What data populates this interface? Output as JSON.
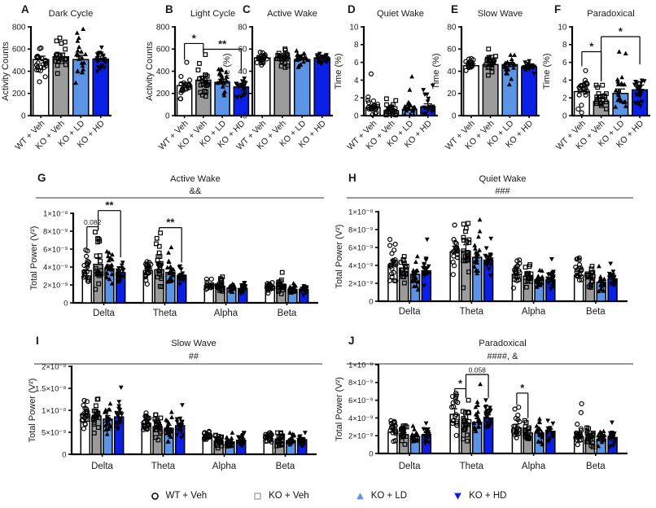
{
  "colors": {
    "bar_fills": [
      "#FFFFFF",
      "#9B9B9B",
      "#5B94E6",
      "#0A20E6"
    ],
    "bar_stroke": "#000000",
    "marker": "#000000",
    "legend_square_stroke": "#ACACAC",
    "axis": "#000000"
  },
  "legend": [
    {
      "label": "WT + Veh",
      "marker": "circle-open",
      "color": "#000000"
    },
    {
      "label": "KO + Veh",
      "marker": "square-open",
      "color": "#ACACAC"
    },
    {
      "label": "KO + LD",
      "marker": "triangle-up",
      "color": "#5B94E6"
    },
    {
      "label": "KO + HD",
      "marker": "triangle-down",
      "color": "#0A20E6"
    }
  ],
  "chart_data": [
    {
      "id": "A",
      "type": "bar-scatter",
      "layout": "top",
      "title": "Dark Cycle",
      "ylabel": "Activity Counts",
      "ylim": [
        0,
        800
      ],
      "yticks": [
        0,
        200,
        400,
        600,
        800
      ],
      "ytick_labels": [
        "0",
        "200",
        "400",
        "600",
        "800"
      ],
      "categories": [
        "WT + Veh",
        "KO + Veh",
        "KO + LD",
        "KO + HD"
      ],
      "means": [
        505,
        530,
        505,
        510
      ],
      "sds": [
        62,
        68,
        78,
        52
      ],
      "extra_points": [
        [
          305,
          350
        ],
        [
          700,
          380
        ],
        [
          700,
          745,
          780,
          295
        ],
        [
          615
        ]
      ],
      "sig": []
    },
    {
      "id": "B",
      "type": "bar-scatter",
      "layout": "top",
      "title": "Light Cycle",
      "ylabel": "Activity Counts",
      "ylim": [
        0,
        800
      ],
      "yticks": [
        0,
        200,
        400,
        600,
        800
      ],
      "ytick_labels": [
        "0",
        "200",
        "400",
        "600",
        "800"
      ],
      "categories": [
        "WT + Veh",
        "KO + Veh",
        "KO + LD",
        "KO + HD"
      ],
      "means": [
        270,
        320,
        300,
        258
      ],
      "sds": [
        55,
        68,
        55,
        48
      ],
      "extra_points": [
        [
          480
        ],
        [
          550,
          470,
          185
        ],
        [
          390
        ],
        [
          168
        ]
      ],
      "sig": [
        {
          "from": 0,
          "to": 1,
          "label": "*",
          "y": 650
        },
        {
          "from": 1,
          "to": 3,
          "label": "**",
          "y": 598
        }
      ]
    },
    {
      "id": "C",
      "type": "bar-scatter",
      "layout": "top",
      "title": "Active Wake",
      "ylabel": "Time (%)",
      "ylim": [
        0,
        80
      ],
      "yticks": [
        0,
        20,
        40,
        60,
        80
      ],
      "ytick_labels": [
        "0",
        "20",
        "40",
        "60",
        "80"
      ],
      "categories": [
        "WT + Veh",
        "KO + Veh",
        "KO + LD",
        "KO + HD"
      ],
      "means": [
        52,
        52,
        50.5,
        52
      ],
      "sds": [
        3,
        4,
        4,
        2.5
      ],
      "extra_points": [
        [],
        [],
        [],
        []
      ],
      "sig": []
    },
    {
      "id": "D",
      "type": "bar-scatter",
      "layout": "top",
      "title": "Quiet Wake",
      "ylabel": "Time (%)",
      "ylim": [
        0,
        10
      ],
      "yticks": [
        0,
        2,
        4,
        6,
        8,
        10
      ],
      "ytick_labels": [
        "0",
        "2",
        "4",
        "6",
        "8",
        "10"
      ],
      "categories": [
        "WT + Veh",
        "KO + Veh",
        "KO + LD",
        "KO + HD"
      ],
      "means": [
        0.9,
        0.55,
        0.7,
        1.0
      ],
      "sds": [
        0.55,
        0.45,
        0.55,
        0.65
      ],
      "extra_points": [
        [
          4.7,
          2.1
        ],
        [
          1.9,
          1.7
        ],
        [
          4.4,
          2.9
        ],
        [
          3.4,
          2.9
        ]
      ],
      "sig": []
    },
    {
      "id": "E",
      "type": "bar-scatter",
      "layout": "top",
      "title": "Slow Wave",
      "ylabel": "Time (%)",
      "ylim": [
        0,
        80
      ],
      "yticks": [
        0,
        20,
        40,
        60,
        80
      ],
      "ytick_labels": [
        "0",
        "20",
        "40",
        "60",
        "80"
      ],
      "categories": [
        "WT + Veh",
        "KO + Veh",
        "KO + LD",
        "KO + HD"
      ],
      "means": [
        45,
        46,
        46,
        44
      ],
      "sds": [
        3.5,
        4.5,
        4,
        3
      ],
      "extra_points": [
        [],
        [
          60
        ],
        [
          28,
          33
        ],
        []
      ],
      "sig": []
    },
    {
      "id": "F",
      "type": "bar-scatter",
      "layout": "top",
      "title": "Paradoxical",
      "ylabel": "Time (%)",
      "ylim": [
        0,
        10
      ],
      "yticks": [
        0,
        2,
        4,
        6,
        8,
        10
      ],
      "ytick_labels": [
        "0",
        "2",
        "4",
        "6",
        "8",
        "10"
      ],
      "categories": [
        "WT + Veh",
        "KO + Veh",
        "KO + LD",
        "KO + HD"
      ],
      "means": [
        2.7,
        1.6,
        2.5,
        2.9
      ],
      "sds": [
        1.1,
        0.85,
        1.0,
        1.1
      ],
      "extra_points": [
        [],
        [],
        [
          7.2,
          7.0
        ],
        []
      ],
      "sig": [
        {
          "from": 0,
          "to": 1,
          "label": "*",
          "y": 7.2
        },
        {
          "from": 1,
          "to": 3,
          "label": "*",
          "y": 8.9
        }
      ]
    },
    {
      "id": "G",
      "type": "grouped-bar-scatter",
      "layout": "wide",
      "title": "Active Wake",
      "annotation": "&&",
      "ylabel": "Total Power (V²)",
      "ylim": [
        0,
        1e-08
      ],
      "yticks": [
        0,
        2e-09,
        4e-09,
        6e-09,
        8e-09,
        1e-08
      ],
      "ytick_labels": [
        "0",
        "2×10⁻⁹",
        "4×10⁻⁹",
        "6×10⁻⁹",
        "8×10⁻⁹",
        "1×10⁻⁸"
      ],
      "categories": [
        "Delta",
        "Theta",
        "Alpha",
        "Beta"
      ],
      "series": [
        {
          "name": "WT + Veh",
          "values": [
            3.6e-09,
            3.6e-09,
            1.9e-09,
            1.8e-09
          ],
          "sds": [
            8e-10,
            7e-10,
            3.5e-10,
            3.5e-10
          ],
          "extra": [
            [
              5.9e-09,
              5.8e-09
            ],
            [
              4.6e-09
            ],
            [],
            []
          ]
        },
        {
          "name": "KO + Veh",
          "values": [
            4.3e-09,
            3.7e-09,
            1.85e-09,
            1.75e-09
          ],
          "sds": [
            1.3e-09,
            1e-09,
            4e-10,
            4.5e-10
          ],
          "extra": [
            [
              7.9e-09,
              7.2e-09,
              6.9e-09
            ],
            [
              7.8e-09,
              7.2e-09,
              6.6e-09,
              6.3e-09
            ],
            [
              2.9e-09
            ],
            [
              3.4e-09
            ]
          ]
        },
        {
          "name": "KO + LD",
          "values": [
            3.8e-09,
            3.4e-09,
            1.65e-09,
            1.5e-09
          ],
          "sds": [
            9e-10,
            8e-10,
            3.5e-10,
            3.5e-10
          ],
          "extra": [
            [
              5.6e-09,
              5.2e-09
            ],
            [
              6.2e-09,
              5.6e-09
            ],
            [],
            []
          ]
        },
        {
          "name": "KO + HD",
          "values": [
            3.4e-09,
            3.05e-09,
            1.6e-09,
            1.5e-09
          ],
          "sds": [
            6e-10,
            5e-10,
            3e-10,
            3e-10
          ],
          "extra": [
            [
              4.5e-09
            ],
            [
              4e-09
            ],
            [],
            []
          ]
        }
      ],
      "sig": [
        {
          "cat": 0,
          "from": 0,
          "to": 1,
          "label": "0.082",
          "small": true,
          "y": 8.5e-09
        },
        {
          "cat": 0,
          "from": 1,
          "to": 3,
          "label": "**",
          "y": 1.03e-08
        },
        {
          "cat": 1,
          "from": 1,
          "to": 3,
          "label": "**",
          "y": 8.4e-09
        }
      ]
    },
    {
      "id": "H",
      "type": "grouped-bar-scatter",
      "layout": "wide",
      "title": "Quiet Wake",
      "annotation": "###",
      "ylabel": "Total Power (V²)",
      "ylim": [
        0,
        1e-08
      ],
      "yticks": [
        0,
        2e-09,
        4e-09,
        6e-09,
        8e-09,
        1e-08
      ],
      "ytick_labels": [
        "0",
        "2×10⁻⁹",
        "4×10⁻⁹",
        "6×10⁻⁹",
        "8×10⁻⁹",
        "1×10⁻⁸"
      ],
      "categories": [
        "Delta",
        "Theta",
        "Alpha",
        "Beta"
      ],
      "series": [
        {
          "name": "WT + Veh",
          "values": [
            4e-09,
            5.5e-09,
            3e-09,
            2.9e-09
          ],
          "sds": [
            1.1e-09,
            1.3e-09,
            8e-10,
            9e-10
          ],
          "extra": [
            [
              6.9e-09
            ],
            [
              8.5e-09
            ],
            [
              4.6e-09
            ],
            [
              4.7e-09
            ]
          ]
        },
        {
          "name": "KO + Veh",
          "values": [
            3.7e-09,
            5.6e-09,
            2.8e-09,
            2.6e-09
          ],
          "sds": [
            9e-10,
            1.4e-09,
            6e-10,
            6e-10
          ],
          "extra": [
            [
              5e-09
            ],
            [
              8.7e-09,
              1.5e-09
            ],
            [
              3.8e-09
            ],
            [
              3.9e-09
            ]
          ]
        },
        {
          "name": "KO + LD",
          "values": [
            3e-09,
            4.9e-09,
            2.4e-09,
            2.1e-09
          ],
          "sds": [
            8e-10,
            1.2e-09,
            5e-10,
            5e-10
          ],
          "extra": [
            [
              5e-09
            ],
            [
              9.1e-09,
              7.8e-09,
              7.2e-09
            ],
            [
              3.4e-09
            ],
            [
              3.9e-09
            ]
          ]
        },
        {
          "name": "KO + HD",
          "values": [
            3.4e-09,
            4.6e-09,
            2.4e-09,
            2.5e-09
          ],
          "sds": [
            9e-10,
            8e-10,
            5e-10,
            6e-10
          ],
          "extra": [
            [
              6.9e-09,
              4.7e-09
            ],
            [
              7e-09
            ],
            [
              4.7e-09
            ],
            [
              4.2e-09
            ]
          ]
        }
      ],
      "sig": []
    },
    {
      "id": "I",
      "type": "grouped-bar-scatter",
      "layout": "wide",
      "title": "Slow  Wave",
      "annotation": "##",
      "ylabel": "Total Power (V²)",
      "ylim": [
        0,
        2e-08
      ],
      "yticks": [
        0,
        5e-09,
        1e-08,
        1.5e-08,
        2e-08
      ],
      "ytick_labels": [
        "0",
        "5×10⁻⁹",
        "1×10⁻⁸",
        "1.5×10⁻⁸",
        "2×10⁻⁸"
      ],
      "categories": [
        "Delta",
        "Theta",
        "Alpha",
        "Beta"
      ],
      "series": [
        {
          "name": "WT + Veh",
          "values": [
            9e-09,
            7e-09,
            3.9e-09,
            3.6e-09
          ],
          "sds": [
            1.5e-09,
            1.3e-09,
            8e-10,
            8e-10
          ],
          "extra": [
            [
              1.2e-08
            ],
            [],
            [],
            [
              4.9e-09
            ]
          ]
        },
        {
          "name": "KO + Veh",
          "values": [
            8.7e-09,
            6.3e-09,
            3e-09,
            3.4e-09
          ],
          "sds": [
            1.8e-09,
            1.5e-09,
            8e-10,
            7e-10
          ],
          "extra": [
            [
              1.25e-08
            ],
            [
              9e-09
            ],
            [],
            []
          ]
        },
        {
          "name": "KO + LD",
          "values": [
            8e-09,
            5.9e-09,
            2.8e-09,
            3.1e-09
          ],
          "sds": [
            1.6e-09,
            1.4e-09,
            7e-10,
            7e-10
          ],
          "extra": [
            [
              1.15e-08
            ],
            [
              9.6e-09
            ],
            [
              4.9e-09
            ],
            [
              4.9e-09
            ]
          ]
        },
        {
          "name": "KO + HD",
          "values": [
            8.5e-09,
            6.5e-09,
            3.2e-09,
            3.3e-09
          ],
          "sds": [
            1.6e-09,
            1.3e-09,
            7e-10,
            7e-10
          ],
          "extra": [
            [
              1.52e-08
            ],
            [
              1.12e-08
            ],
            [
              4.9e-09
            ],
            [
              4.9e-09
            ]
          ]
        }
      ],
      "sig": []
    },
    {
      "id": "J",
      "type": "grouped-bar-scatter",
      "layout": "wide",
      "title": "Paradoxical",
      "annotation": "####, &",
      "ylabel": "Total Power (V²)",
      "ylim": [
        0,
        1e-08
      ],
      "yticks": [
        0,
        2e-09,
        4e-09,
        6e-09,
        8e-09,
        1e-08
      ],
      "ytick_labels": [
        "0",
        "2×10⁻⁹",
        "4×10⁻⁹",
        "6×10⁻⁹",
        "8×10⁻⁹",
        "1×10⁻⁸"
      ],
      "categories": [
        "Delta",
        "Theta",
        "Alpha",
        "Beta"
      ],
      "series": [
        {
          "name": "WT + Veh",
          "values": [
            2.4e-09,
            4.4e-09,
            2.9e-09,
            1.9e-09
          ],
          "sds": [
            6e-10,
            1.3e-09,
            8e-10,
            5e-10
          ],
          "extra": [
            [
              3.5e-09,
              3.4e-09
            ],
            [
              6.8e-09,
              6.6e-09
            ],
            [
              5.2e-09,
              5e-09
            ],
            [
              5.6e-09,
              4.6e-09,
              3.3e-09
            ]
          ]
        },
        {
          "name": "KO + Veh",
          "values": [
            2.1e-09,
            3.4e-09,
            2.3e-09,
            1.8e-09
          ],
          "sds": [
            5e-10,
            1e-09,
            6e-10,
            5e-10
          ],
          "extra": [
            [
              3.1e-09
            ],
            [
              6e-09,
              1.4e-09
            ],
            [
              3.7e-09
            ],
            [
              2.9e-09
            ]
          ]
        },
        {
          "name": "KO + LD",
          "values": [
            1.9e-09,
            3.5e-09,
            2.3e-09,
            1.6e-09
          ],
          "sds": [
            5e-10,
            9e-10,
            6e-10,
            4e-10
          ],
          "extra": [
            [
              3.1e-09
            ],
            [
              7.8e-09,
              5.8e-09
            ],
            [
              3.9e-09
            ],
            [
              2.5e-09
            ]
          ]
        },
        {
          "name": "KO + HD",
          "values": [
            2.1e-09,
            4e-09,
            2.5e-09,
            1.8e-09
          ],
          "sds": [
            5e-10,
            7e-10,
            5e-10,
            5e-10
          ],
          "extra": [
            [
              3.4e-09
            ],
            [
              6e-09
            ],
            [
              3.7e-09
            ],
            [
              3.5e-09
            ]
          ]
        }
      ],
      "sig": [
        {
          "cat": 1,
          "from": 0,
          "to": 1,
          "label": "*",
          "y": 7.3e-09
        },
        {
          "cat": 1,
          "from": 1,
          "to": 3,
          "label": "0.058",
          "small": true,
          "y": 8.9e-09
        },
        {
          "cat": 2,
          "from": 0,
          "to": 1,
          "label": "*",
          "y": 6.8e-09
        }
      ]
    }
  ]
}
